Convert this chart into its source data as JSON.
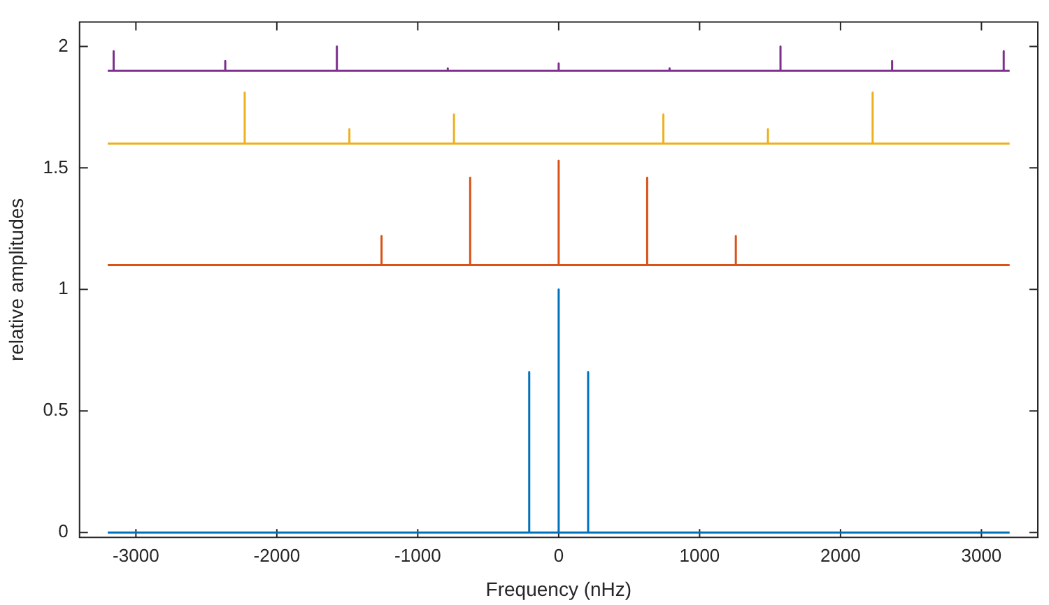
{
  "chart_data": {
    "type": "line",
    "xlabel": "Frequency (nHz)",
    "ylabel": "relative amplitudes",
    "xlim": [
      -3400,
      3400
    ],
    "xticks": [
      -3000,
      -2000,
      -1000,
      0,
      1000,
      2000,
      3000
    ],
    "ylim": [
      -0.02,
      2.1
    ],
    "yticks": [
      0,
      0.5,
      1,
      1.5,
      2
    ],
    "grid": false,
    "legend": false,
    "marker": "none",
    "line_style": "solid",
    "series": [
      {
        "color": "#0072bd",
        "x": [
          -3200,
          -209,
          -209,
          -209,
          0,
          0,
          0,
          209,
          209,
          209,
          3200
        ],
        "values": [
          0,
          0,
          0.66,
          0,
          0,
          1,
          0,
          0,
          0.66,
          0,
          0
        ]
      },
      {
        "color": "#d95319",
        "x": [
          -3200,
          -1257,
          -1257,
          -1257,
          -628,
          -628,
          -628,
          0,
          0,
          0,
          628,
          628,
          628,
          1257,
          1257,
          1257,
          3200
        ],
        "values": [
          1.1,
          1.1,
          1.22,
          1.1,
          1.1,
          1.46,
          1.1,
          1.1,
          1.53,
          1.1,
          1.1,
          1.46,
          1.1,
          1.1,
          1.22,
          1.1,
          1.1
        ]
      },
      {
        "color": "#edb120",
        "x": [
          -3200,
          -2228,
          -2228,
          -2228,
          -1485,
          -1485,
          -1485,
          -743,
          -743,
          -743,
          743,
          743,
          743,
          1485,
          1485,
          1485,
          2228,
          2228,
          2228,
          3200
        ],
        "values": [
          1.6,
          1.6,
          1.81,
          1.6,
          1.6,
          1.66,
          1.6,
          1.6,
          1.72,
          1.6,
          1.6,
          1.72,
          1.6,
          1.6,
          1.66,
          1.6,
          1.6,
          1.81,
          1.6,
          1.6
        ]
      },
      {
        "color": "#7e2f8e",
        "x": [
          -3200,
          -3158,
          -3158,
          -3158,
          -2366,
          -2366,
          -2366,
          -1574,
          -1574,
          -1574,
          -787,
          -787,
          -787,
          0,
          0,
          0,
          787,
          787,
          787,
          1574,
          1574,
          1574,
          2366,
          2366,
          2366,
          3158,
          3158,
          3158,
          3200
        ],
        "values": [
          1.9,
          1.9,
          1.98,
          1.9,
          1.9,
          1.94,
          1.9,
          1.9,
          2,
          1.9,
          1.9,
          1.91,
          1.9,
          1.9,
          1.93,
          1.9,
          1.9,
          1.91,
          1.9,
          1.9,
          2,
          1.9,
          1.9,
          1.94,
          1.9,
          1.9,
          1.98,
          1.9,
          1.9
        ]
      }
    ]
  }
}
